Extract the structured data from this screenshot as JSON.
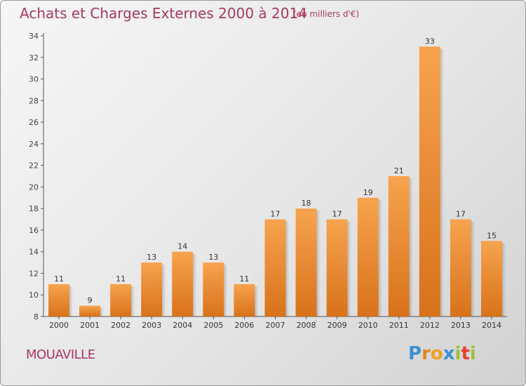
{
  "header": {
    "title": "Achats et Charges Externes 2000 à 2014",
    "subtitle": "(en milliers d'€)"
  },
  "footer": {
    "commune": "MOUAVILLE",
    "logo_letters": [
      "P",
      "r",
      "o",
      "x",
      "i",
      "t",
      "i"
    ],
    "logo_colors": [
      "#3e8fd0",
      "#e0881e",
      "#f2a020",
      "#3e8fd0",
      "#9ac23c",
      "#e8402a",
      "#9ac23c"
    ]
  },
  "chart_data": {
    "type": "bar",
    "categories": [
      "2000",
      "2001",
      "2002",
      "2003",
      "2004",
      "2005",
      "2006",
      "2007",
      "2008",
      "2009",
      "2010",
      "2011",
      "2012",
      "2013",
      "2014"
    ],
    "values": [
      11,
      9,
      11,
      13,
      14,
      13,
      11,
      17,
      18,
      17,
      19,
      21,
      33,
      17,
      15
    ],
    "ylim": [
      8,
      34
    ],
    "yticks": [
      8,
      10,
      12,
      14,
      16,
      18,
      20,
      22,
      24,
      26,
      28,
      30,
      32,
      34
    ],
    "grid": false,
    "bar_color_top": "#f7a34e",
    "bar_color_bottom": "#d8721a"
  }
}
